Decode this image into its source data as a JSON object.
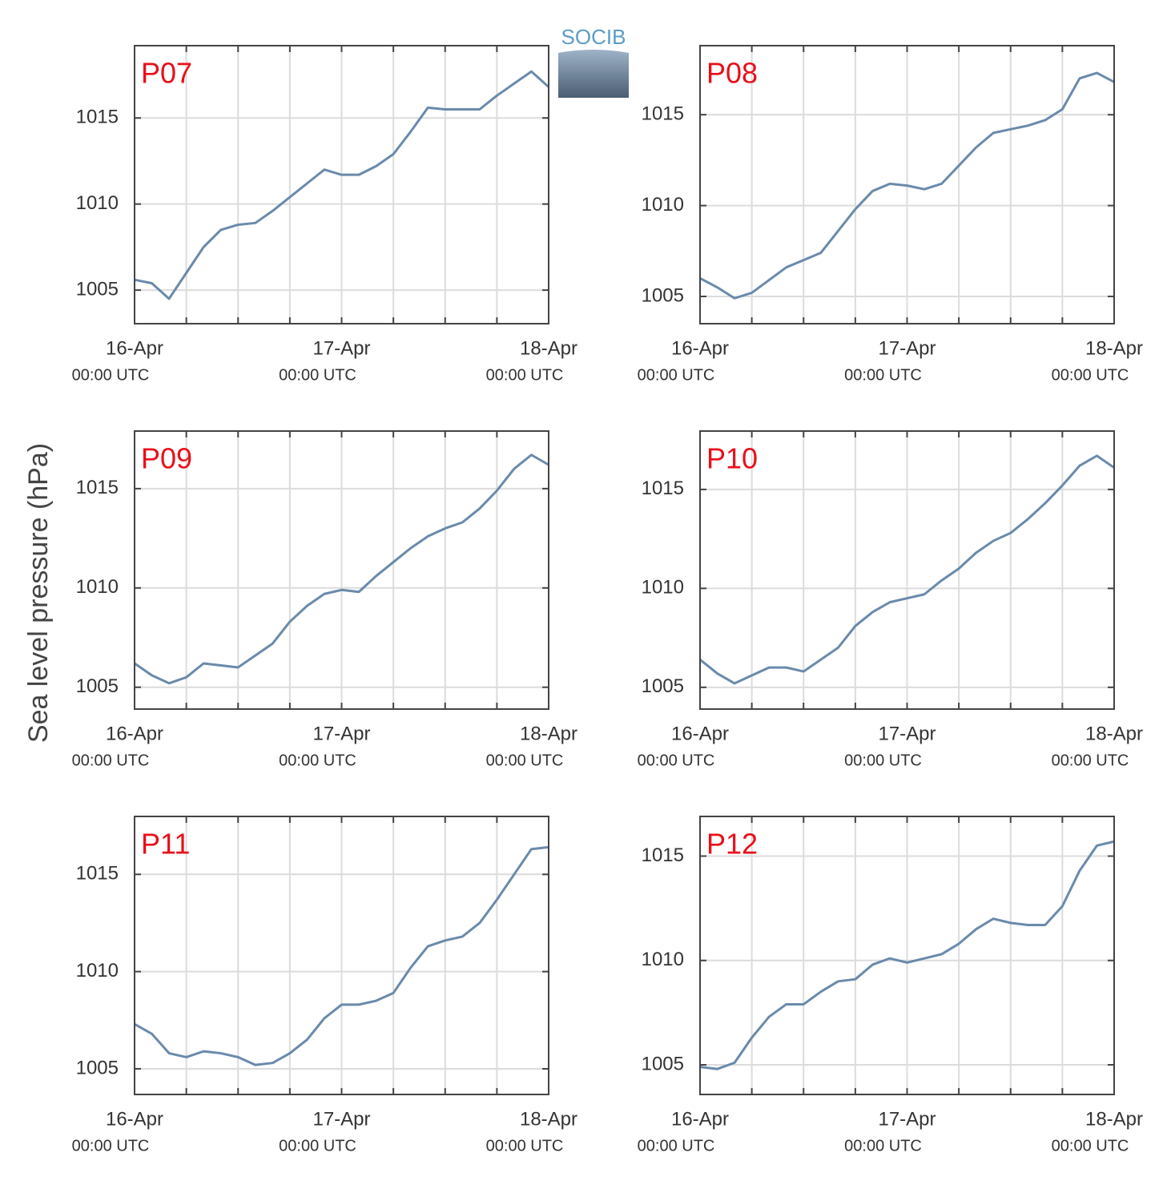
{
  "y_label": "Sea level pressure (hPa)",
  "logo": "SOCIB",
  "chart_data": [
    {
      "type": "line",
      "title": "P07",
      "grid": true,
      "ylim": [
        1003.05,
        1019.2
      ],
      "yticks": [
        1005,
        1010,
        1015
      ],
      "xlim": [
        0,
        48
      ],
      "xticks": [
        {
          "value": 0,
          "label": "16-Apr",
          "sublabel": "00:00 UTC"
        },
        {
          "value": 6
        },
        {
          "value": 12
        },
        {
          "value": 18
        },
        {
          "value": 24,
          "label": "17-Apr",
          "sublabel": "00:00 UTC"
        },
        {
          "value": 30
        },
        {
          "value": 36
        },
        {
          "value": 42
        },
        {
          "value": 48,
          "label": "18-Apr",
          "sublabel": "00:00 UTC"
        }
      ],
      "x": [
        0,
        2,
        4,
        6,
        8,
        10,
        12,
        14,
        16,
        18,
        20,
        22,
        24,
        26,
        28,
        30,
        32,
        34,
        36,
        38,
        40,
        42,
        44,
        46,
        48
      ],
      "series": [
        {
          "color": "#6a8aab",
          "values": [
            1005.6,
            1005.4,
            1004.5,
            1006.0,
            1007.5,
            1008.5,
            1008.8,
            1008.9,
            1009.6,
            1010.4,
            1011.2,
            1012.0,
            1011.7,
            1011.7,
            1012.2,
            1012.9,
            1014.2,
            1015.6,
            1015.5,
            1015.5,
            1015.5,
            1016.3,
            1017.0,
            1017.7,
            1016.8
          ]
        }
      ]
    },
    {
      "type": "line",
      "title": "P08",
      "grid": true,
      "ylim": [
        1003.5,
        1018.8
      ],
      "yticks": [
        1005,
        1010,
        1015
      ],
      "xlim": [
        0,
        48
      ],
      "xticks": [
        {
          "value": 0,
          "label": "16-Apr",
          "sublabel": "00:00 UTC"
        },
        {
          "value": 6
        },
        {
          "value": 12
        },
        {
          "value": 18
        },
        {
          "value": 24,
          "label": "17-Apr",
          "sublabel": "00:00 UTC"
        },
        {
          "value": 30
        },
        {
          "value": 36
        },
        {
          "value": 42
        },
        {
          "value": 48,
          "label": "18-Apr",
          "sublabel": "00:00 UTC"
        }
      ],
      "x": [
        0,
        2,
        4,
        6,
        8,
        10,
        12,
        14,
        16,
        18,
        20,
        22,
        24,
        26,
        28,
        30,
        32,
        34,
        36,
        38,
        40,
        42,
        44,
        46,
        48
      ],
      "series": [
        {
          "color": "#6a8aab",
          "values": [
            1006.0,
            1005.5,
            1004.9,
            1005.2,
            1005.9,
            1006.6,
            1007.0,
            1007.4,
            1008.6,
            1009.8,
            1010.8,
            1011.2,
            1011.1,
            1010.9,
            1011.2,
            1012.2,
            1013.2,
            1014.0,
            1014.2,
            1014.4,
            1014.7,
            1015.3,
            1017.0,
            1017.3,
            1016.8
          ]
        }
      ]
    },
    {
      "type": "line",
      "title": "P09",
      "grid": true,
      "ylim": [
        1003.9,
        1017.9
      ],
      "yticks": [
        1005,
        1010,
        1015
      ],
      "xlim": [
        0,
        48
      ],
      "xticks": [
        {
          "value": 0,
          "label": "16-Apr",
          "sublabel": "00:00 UTC"
        },
        {
          "value": 6
        },
        {
          "value": 12
        },
        {
          "value": 18
        },
        {
          "value": 24,
          "label": "17-Apr",
          "sublabel": "00:00 UTC"
        },
        {
          "value": 30
        },
        {
          "value": 36
        },
        {
          "value": 42
        },
        {
          "value": 48,
          "label": "18-Apr",
          "sublabel": "00:00 UTC"
        }
      ],
      "x": [
        0,
        2,
        4,
        6,
        8,
        10,
        12,
        14,
        16,
        18,
        20,
        22,
        24,
        26,
        28,
        30,
        32,
        34,
        36,
        38,
        40,
        42,
        44,
        46,
        48
      ],
      "series": [
        {
          "color": "#6a8aab",
          "values": [
            1006.2,
            1005.6,
            1005.2,
            1005.5,
            1006.2,
            1006.1,
            1006.0,
            1006.6,
            1007.2,
            1008.3,
            1009.1,
            1009.7,
            1009.9,
            1009.8,
            1010.6,
            1011.3,
            1012.0,
            1012.6,
            1013.0,
            1013.3,
            1014.0,
            1014.9,
            1016.0,
            1016.7,
            1016.2
          ]
        }
      ]
    },
    {
      "type": "line",
      "title": "P10",
      "grid": true,
      "ylim": [
        1003.9,
        1017.95
      ],
      "yticks": [
        1005,
        1010,
        1015
      ],
      "xlim": [
        0,
        48
      ],
      "xticks": [
        {
          "value": 0,
          "label": "16-Apr",
          "sublabel": "00:00 UTC"
        },
        {
          "value": 6
        },
        {
          "value": 12
        },
        {
          "value": 18
        },
        {
          "value": 24,
          "label": "17-Apr",
          "sublabel": "00:00 UTC"
        },
        {
          "value": 30
        },
        {
          "value": 36
        },
        {
          "value": 42
        },
        {
          "value": 48,
          "label": "18-Apr",
          "sublabel": "00:00 UTC"
        }
      ],
      "x": [
        0,
        2,
        4,
        6,
        8,
        10,
        12,
        14,
        16,
        18,
        20,
        22,
        24,
        26,
        28,
        30,
        32,
        34,
        36,
        38,
        40,
        42,
        44,
        46,
        48
      ],
      "series": [
        {
          "color": "#6a8aab",
          "values": [
            1006.4,
            1005.7,
            1005.2,
            1005.6,
            1006.0,
            1006.0,
            1005.8,
            1006.4,
            1007.0,
            1008.1,
            1008.8,
            1009.3,
            1009.5,
            1009.7,
            1010.4,
            1011.0,
            1011.8,
            1012.4,
            1012.8,
            1013.5,
            1014.3,
            1015.2,
            1016.2,
            1016.7,
            1016.1
          ]
        }
      ]
    },
    {
      "type": "line",
      "title": "P11",
      "grid": true,
      "ylim": [
        1003.68,
        1017.98
      ],
      "yticks": [
        1005,
        1010,
        1015
      ],
      "xlim": [
        0,
        48
      ],
      "xticks": [
        {
          "value": 0,
          "label": "16-Apr",
          "sublabel": "00:00 UTC"
        },
        {
          "value": 6
        },
        {
          "value": 12
        },
        {
          "value": 18
        },
        {
          "value": 24,
          "label": "17-Apr",
          "sublabel": "00:00 UTC"
        },
        {
          "value": 30
        },
        {
          "value": 36
        },
        {
          "value": 42
        },
        {
          "value": 48,
          "label": "18-Apr",
          "sublabel": "00:00 UTC"
        }
      ],
      "x": [
        0,
        2,
        4,
        6,
        8,
        10,
        12,
        14,
        16,
        18,
        20,
        22,
        24,
        26,
        28,
        30,
        32,
        34,
        36,
        38,
        40,
        42,
        44,
        46,
        48
      ],
      "series": [
        {
          "color": "#6a8aab",
          "values": [
            1007.3,
            1006.8,
            1005.8,
            1005.6,
            1005.9,
            1005.8,
            1005.6,
            1005.2,
            1005.3,
            1005.8,
            1006.5,
            1007.6,
            1008.3,
            1008.3,
            1008.5,
            1008.9,
            1010.2,
            1011.3,
            1011.6,
            1011.8,
            1012.5,
            1013.7,
            1015.0,
            1016.3,
            1016.4
          ]
        }
      ]
    },
    {
      "type": "line",
      "title": "P12",
      "grid": true,
      "ylim": [
        1003.58,
        1016.9
      ],
      "yticks": [
        1005,
        1010,
        1015
      ],
      "xlim": [
        0,
        48
      ],
      "xticks": [
        {
          "value": 0,
          "label": "16-Apr",
          "sublabel": "00:00 UTC"
        },
        {
          "value": 6
        },
        {
          "value": 12
        },
        {
          "value": 18
        },
        {
          "value": 24,
          "label": "17-Apr",
          "sublabel": "00:00 UTC"
        },
        {
          "value": 30
        },
        {
          "value": 36
        },
        {
          "value": 42
        },
        {
          "value": 48,
          "label": "18-Apr",
          "sublabel": "00:00 UTC"
        }
      ],
      "x": [
        0,
        2,
        4,
        6,
        8,
        10,
        12,
        14,
        16,
        18,
        20,
        22,
        24,
        26,
        28,
        30,
        32,
        34,
        36,
        38,
        40,
        42,
        44,
        46,
        48
      ],
      "series": [
        {
          "color": "#6a8aab",
          "values": [
            1004.9,
            1004.8,
            1005.1,
            1006.3,
            1007.3,
            1007.9,
            1007.9,
            1008.5,
            1009.0,
            1009.1,
            1009.8,
            1010.1,
            1009.9,
            1010.1,
            1010.3,
            1010.8,
            1011.5,
            1012.0,
            1011.8,
            1011.7,
            1011.7,
            1012.6,
            1014.3,
            1015.5,
            1015.7
          ]
        }
      ]
    }
  ]
}
